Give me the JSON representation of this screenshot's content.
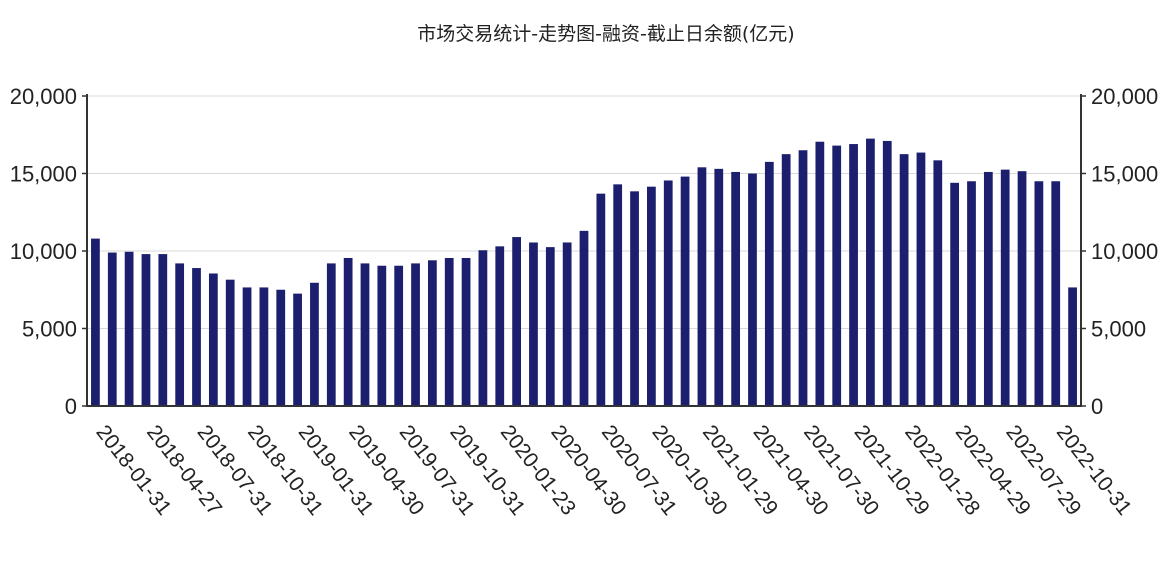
{
  "chart_data": {
    "type": "bar",
    "title": "市场交易统计-走势图-融资-截止日余额(亿元)",
    "bar_color": "#1c1f6e",
    "ylim": [
      0,
      20000
    ],
    "y_ticks": [
      "0",
      "5,000",
      "10,000",
      "15,000",
      "20,000"
    ],
    "y_tick_values": [
      0,
      5000,
      10000,
      15000,
      20000
    ],
    "x_tick_labels": [
      "2018-01-31",
      "2018-04-27",
      "2018-07-31",
      "2018-10-31",
      "2019-01-31",
      "2019-04-30",
      "2019-07-31",
      "2019-10-31",
      "2020-01-23",
      "2020-04-30",
      "2020-07-31",
      "2020-10-30",
      "2021-01-29",
      "2021-04-30",
      "2021-07-30",
      "2021-10-29",
      "2022-01-28",
      "2022-04-29",
      "2022-07-29",
      "2022-10-31"
    ],
    "values": [
      10800,
      9900,
      9950,
      9800,
      9800,
      9200,
      8900,
      8550,
      8150,
      7650,
      7650,
      7500,
      7250,
      7950,
      9200,
      9550,
      9200,
      9050,
      9050,
      9200,
      9400,
      9550,
      9550,
      10050,
      10300,
      10900,
      10550,
      10250,
      10550,
      11300,
      13700,
      14300,
      13850,
      14150,
      14550,
      14800,
      15400,
      15300,
      15100,
      15000,
      15750,
      16250,
      16500,
      17050,
      16800,
      16900,
      17250,
      17100,
      16250,
      16350,
      15850,
      14400,
      14500,
      15100,
      15250,
      15150,
      14500,
      14500,
      7650
    ],
    "grid": true,
    "legend": "none"
  }
}
